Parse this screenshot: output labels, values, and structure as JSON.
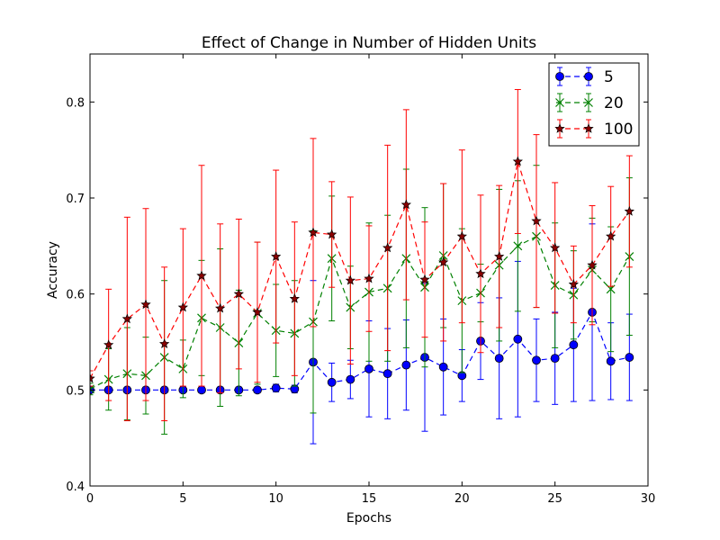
{
  "chart_data": {
    "type": "line",
    "title": "Effect of Change in Number of Hidden Units",
    "xlabel": "Epochs",
    "ylabel": "Accuracy",
    "xlim": [
      0,
      30
    ],
    "ylim": [
      0.4,
      0.85
    ],
    "xticks": [
      0,
      5,
      10,
      15,
      20,
      25,
      30
    ],
    "yticks": [
      0.4,
      0.5,
      0.6,
      0.7,
      0.8
    ],
    "grid": false,
    "legend_position": "top-right",
    "x": [
      0,
      1,
      2,
      3,
      4,
      5,
      6,
      7,
      8,
      9,
      10,
      11,
      12,
      13,
      14,
      15,
      16,
      17,
      18,
      19,
      20,
      21,
      22,
      23,
      24,
      25,
      26,
      27,
      28,
      29
    ],
    "series": [
      {
        "name": "5",
        "color": "#0000ff",
        "marker": "circle",
        "linestyle": "dashed",
        "values": [
          0.5,
          0.5,
          0.5,
          0.5,
          0.5,
          0.5,
          0.5,
          0.5,
          0.5,
          0.5,
          0.502,
          0.501,
          0.529,
          0.508,
          0.511,
          0.522,
          0.517,
          0.526,
          0.534,
          0.524,
          0.515,
          0.551,
          0.533,
          0.553,
          0.531,
          0.533,
          0.547,
          0.581,
          0.53,
          0.534
        ],
        "errors": [
          0.003,
          0.003,
          0.003,
          0.003,
          0.003,
          0.003,
          0.003,
          0.003,
          0.003,
          0.003,
          0.004,
          0.004,
          0.085,
          0.02,
          0.02,
          0.05,
          0.047,
          0.047,
          0.077,
          0.05,
          0.027,
          0.04,
          0.063,
          0.081,
          0.043,
          0.048,
          0.059,
          0.092,
          0.04,
          0.045
        ]
      },
      {
        "name": "20",
        "color": "#008000",
        "marker": "x",
        "linestyle": "dashed",
        "values": [
          0.501,
          0.511,
          0.517,
          0.515,
          0.534,
          0.522,
          0.575,
          0.565,
          0.549,
          0.58,
          0.562,
          0.559,
          0.571,
          0.637,
          0.586,
          0.602,
          0.606,
          0.637,
          0.607,
          0.64,
          0.593,
          0.601,
          0.63,
          0.65,
          0.66,
          0.609,
          0.599,
          0.625,
          0.605,
          0.639
        ],
        "errors": [
          0.006,
          0.032,
          0.048,
          0.04,
          0.08,
          0.03,
          0.06,
          0.082,
          0.055,
          0.074,
          0.048,
          0.055,
          0.095,
          0.065,
          0.043,
          0.072,
          0.076,
          0.093,
          0.083,
          0.075,
          0.075,
          0.03,
          0.079,
          0.068,
          0.074,
          0.065,
          0.046,
          0.054,
          0.065,
          0.082
        ]
      },
      {
        "name": "100",
        "color": "#ff0000",
        "marker": "star",
        "linestyle": "dashed",
        "values": [
          0.512,
          0.547,
          0.574,
          0.589,
          0.548,
          0.586,
          0.619,
          0.585,
          0.6,
          0.581,
          0.639,
          0.595,
          0.664,
          0.662,
          0.614,
          0.616,
          0.648,
          0.693,
          0.615,
          0.633,
          0.66,
          0.621,
          0.639,
          0.738,
          0.676,
          0.648,
          0.61,
          0.63,
          0.66,
          0.686
        ],
        "errors": [
          0.008,
          0.058,
          0.106,
          0.1,
          0.08,
          0.082,
          0.115,
          0.088,
          0.078,
          0.073,
          0.09,
          0.08,
          0.098,
          0.055,
          0.087,
          0.055,
          0.107,
          0.099,
          0.06,
          0.082,
          0.09,
          0.082,
          0.074,
          0.075,
          0.09,
          0.068,
          0.04,
          0.062,
          0.052,
          0.058
        ]
      }
    ]
  }
}
